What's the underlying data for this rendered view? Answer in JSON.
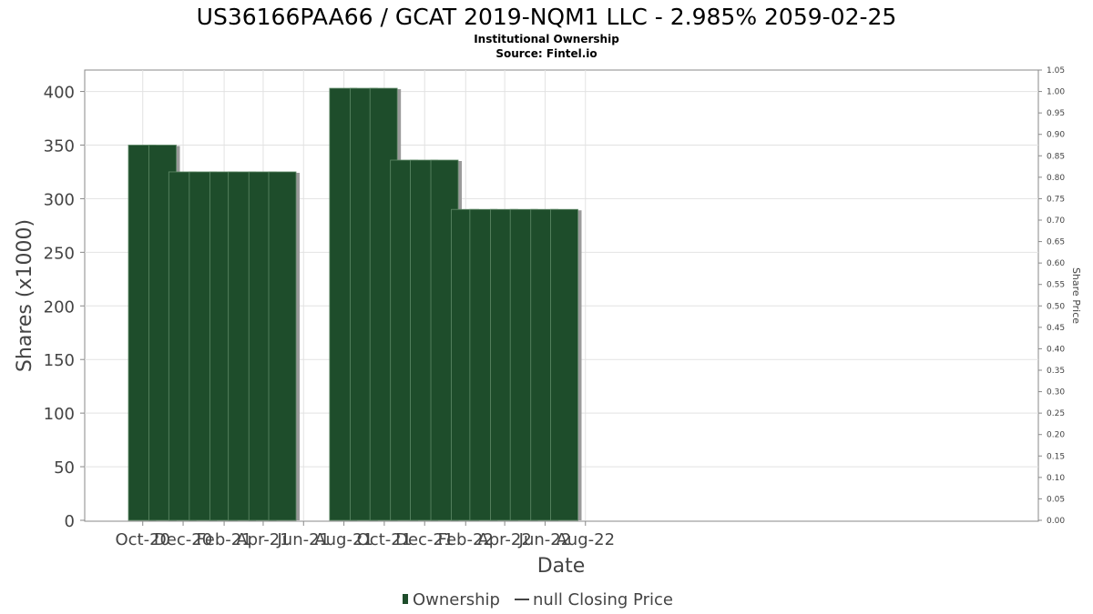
{
  "chart_data": {
    "type": "bar",
    "title": "US36166PAA66 / GCAT 2019-NQM1 LLC - 2.985% 2059-02-25",
    "subtitles": [
      "Institutional Ownership",
      "Source: Fintel.io"
    ],
    "xlabel": "Date",
    "ylabel": "Shares (x1000)",
    "y2label": "Share Price",
    "ylim": [
      0,
      420
    ],
    "y2lim": [
      0,
      1.05
    ],
    "yticks": [
      "0",
      "50",
      "100",
      "150",
      "200",
      "250",
      "300",
      "350",
      "400"
    ],
    "y2ticks": [
      "0.00",
      "0.05",
      "0.10",
      "0.15",
      "0.20",
      "0.25",
      "0.30",
      "0.35",
      "0.40",
      "0.45",
      "0.50",
      "0.55",
      "0.60",
      "0.65",
      "0.70",
      "0.75",
      "0.80",
      "0.85",
      "0.90",
      "0.95",
      "1.00",
      "1.05"
    ],
    "xticks": [
      "Oct-20",
      "Dec-20",
      "Feb-21",
      "Apr-21",
      "Jun-21",
      "Aug-21",
      "Oct-21",
      "Dec-21",
      "Feb-22",
      "Apr-22",
      "Jun-22",
      "Aug-22"
    ],
    "grid": true,
    "legend_position": "bottom",
    "series": [
      {
        "name": "Ownership",
        "color": "#1e4d2b",
        "points": [
          {
            "x": "2020-09-30",
            "y": 350
          },
          {
            "x": "2020-10-31",
            "y": 350
          },
          {
            "x": "2020-11-30",
            "y": 325
          },
          {
            "x": "2020-12-31",
            "y": 325
          },
          {
            "x": "2021-01-31",
            "y": 325
          },
          {
            "x": "2021-02-28",
            "y": 325
          },
          {
            "x": "2021-03-31",
            "y": 325
          },
          {
            "x": "2021-04-30",
            "y": 325
          },
          {
            "x": "2021-07-31",
            "y": 403
          },
          {
            "x": "2021-08-31",
            "y": 403
          },
          {
            "x": "2021-09-30",
            "y": 403
          },
          {
            "x": "2021-10-31",
            "y": 336
          },
          {
            "x": "2021-11-30",
            "y": 336
          },
          {
            "x": "2021-12-31",
            "y": 336
          },
          {
            "x": "2022-01-31",
            "y": 290
          },
          {
            "x": "2022-02-28",
            "y": 290
          },
          {
            "x": "2022-03-31",
            "y": 290
          },
          {
            "x": "2022-04-30",
            "y": 290
          },
          {
            "x": "2022-05-31",
            "y": 290
          },
          {
            "x": "2022-06-30",
            "y": 290
          }
        ]
      },
      {
        "name": "null Closing Price",
        "color": "#444444",
        "points": []
      }
    ]
  }
}
